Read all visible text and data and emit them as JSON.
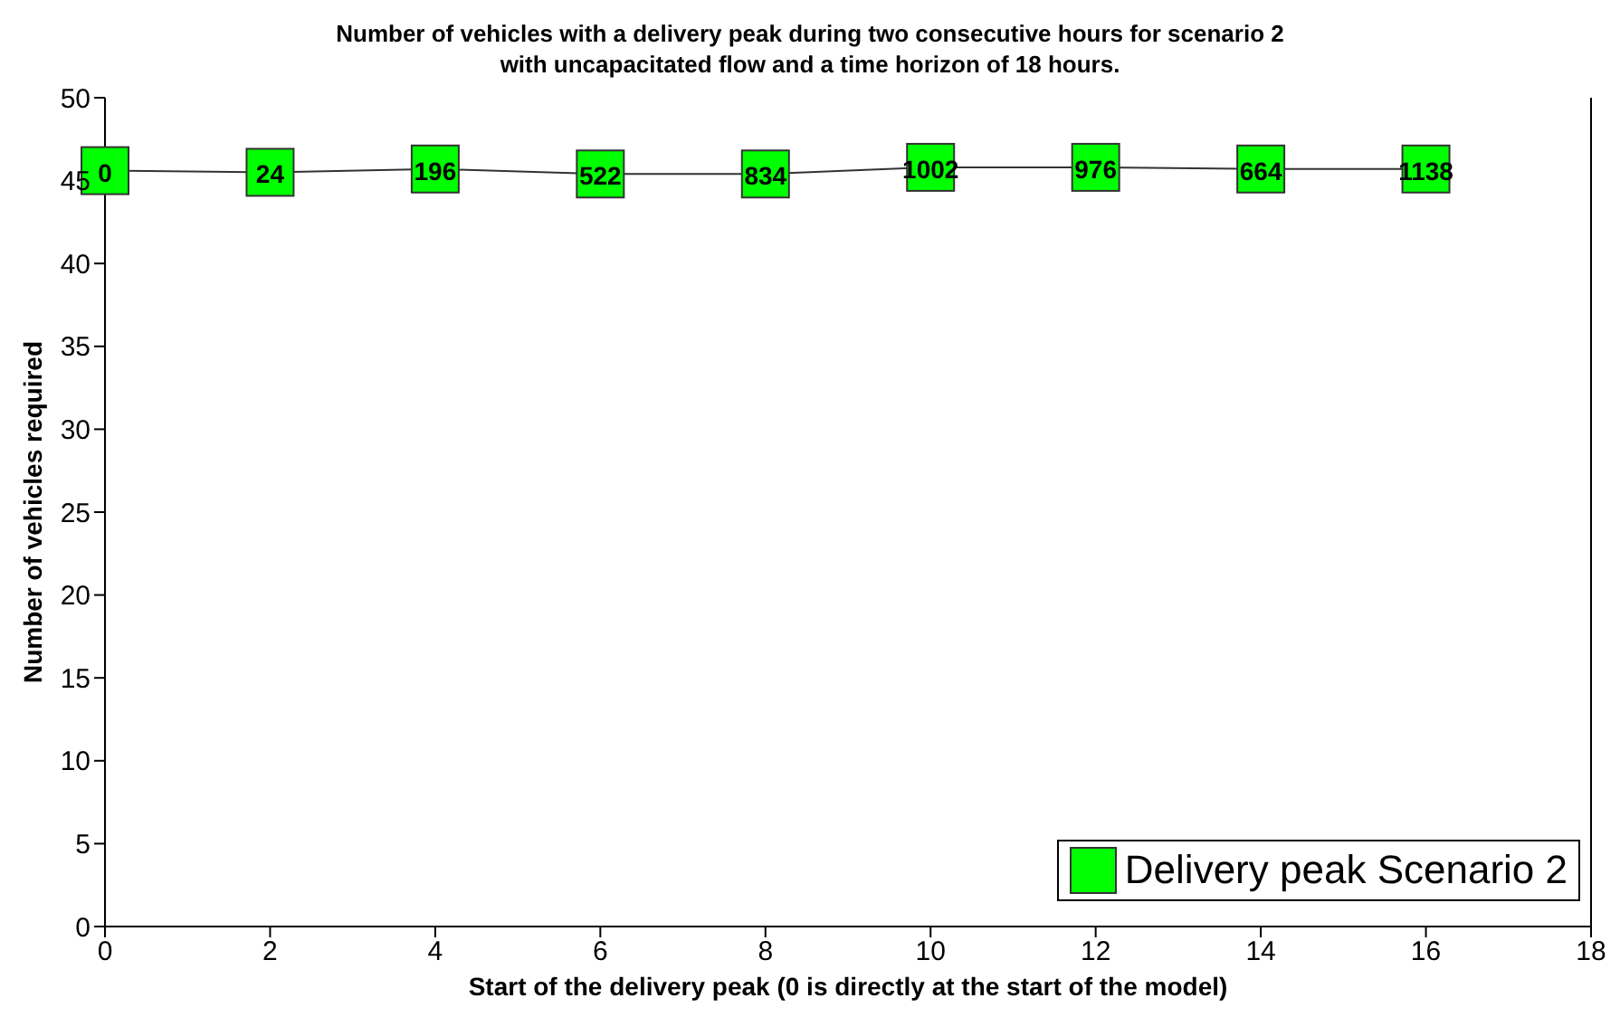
{
  "chart_data": {
    "type": "line",
    "title": "Number of vehicles with a delivery peak during two consecutive hours for scenario 2\nwith uncapacitated flow and a time horizon of 18 hours.",
    "xlabel": "Start of the delivery peak (0 is directly at the start of the model)",
    "ylabel": "Number of vehicles required",
    "x": [
      0,
      2,
      4,
      6,
      8,
      10,
      12,
      14,
      16
    ],
    "series": [
      {
        "name": "Delivery peak Scenario 2",
        "color": "#00ff00",
        "values": [
          45.6,
          45.5,
          45.7,
          45.4,
          45.4,
          45.8,
          45.8,
          45.7,
          45.7
        ]
      }
    ],
    "annotations": [
      {
        "text": "0",
        "x": 0,
        "y": 45.6
      },
      {
        "text": "24",
        "x": 2,
        "y": 45.5
      },
      {
        "text": "196",
        "x": 4,
        "y": 45.7
      },
      {
        "text": "522",
        "x": 6,
        "y": 45.4
      },
      {
        "text": "834",
        "x": 8,
        "y": 45.4
      },
      {
        "text": "1002",
        "x": 10,
        "y": 45.8
      },
      {
        "text": "976",
        "x": 12,
        "y": 45.8
      },
      {
        "text": "664",
        "x": 14,
        "y": 45.7
      },
      {
        "text": "1138",
        "x": 16,
        "y": 45.7
      }
    ],
    "xlim": [
      0,
      18
    ],
    "xticks": [
      0,
      2,
      4,
      6,
      8,
      10,
      12,
      14,
      16,
      18
    ],
    "ylim": [
      0,
      50
    ],
    "yticks": [
      0,
      5,
      10,
      15,
      20,
      25,
      30,
      35,
      40,
      45,
      50
    ],
    "grid": false,
    "legend": "bottom right",
    "marker": "square",
    "line_style": "solid"
  }
}
